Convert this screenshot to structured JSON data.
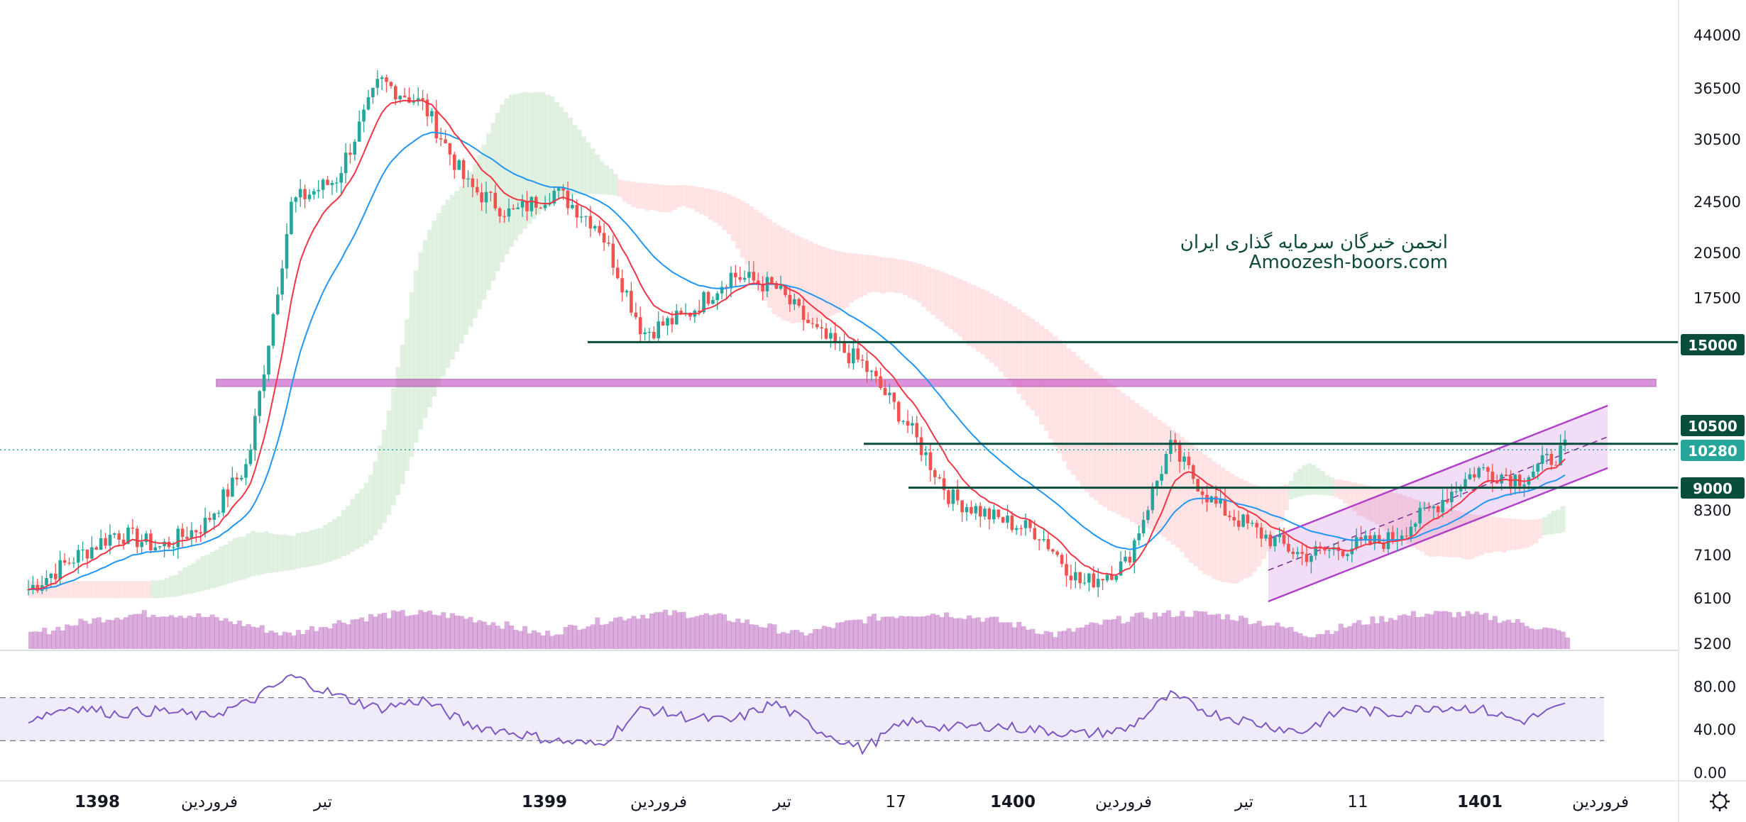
{
  "watermark": {
    "line1": "انجمن خبرگان سرمایه گذاری ایران",
    "line2": "Amoozesh-boors.com"
  },
  "colors": {
    "up": "#26a69a",
    "down": "#ef5350",
    "ema_fast": "#f23645",
    "ema_slow": "#2196f3",
    "level": "#0b4d3c",
    "zone": "#c039c0",
    "channel": "#b040c8",
    "volume": "#b04ab4",
    "rsi": "#7e57c2",
    "last_price": "#26a69a",
    "cloud_green": "#c8e6c9",
    "cloud_red": "#ffcdd2"
  },
  "price_axis": {
    "ticks": [
      "44000",
      "36500",
      "30500",
      "24500",
      "20500",
      "17500",
      "8300",
      "7100",
      "6100",
      "5200"
    ],
    "scale": "log",
    "range": [
      5200,
      44000
    ]
  },
  "rsi_axis": {
    "ticks": [
      "80.00",
      "40.00",
      "0.00"
    ],
    "upper_band": 70,
    "lower_band": 30
  },
  "time_axis": {
    "labels": [
      "1398",
      "فروردین",
      "تیر",
      "1399",
      "فروردین",
      "تیر",
      "17",
      "1400",
      "فروردین",
      "تیر",
      "11",
      "1401",
      "فروردین"
    ],
    "bold": [
      "1398",
      "1399",
      "1400",
      "1401"
    ]
  },
  "badges": {
    "level_15000": "15000",
    "level_10500": "10500",
    "last_price": "10280",
    "level_9000": "9000"
  },
  "settings_icon": "gear-icon",
  "chart_data": [
    {
      "type": "candlestick",
      "scale": "log",
      "ylim": [
        5200,
        44000
      ],
      "x": [
        "1398",
        "فروردین",
        "تیر",
        "1399",
        "فروردین",
        "تیر",
        "17",
        "1400",
        "فروردین",
        "تیر",
        "11",
        "1401",
        "فروردین"
      ],
      "close_path": [
        6300,
        7000,
        7700,
        7300,
        7900,
        9800,
        24500,
        26500,
        37500,
        34500,
        26000,
        23500,
        25500,
        22500,
        15500,
        16500,
        19000,
        18200,
        15400,
        13900,
        11300,
        8700,
        8100,
        7700,
        6400,
        6900,
        10400,
        8500,
        7700,
        7100,
        7300,
        7500,
        8400,
        9600,
        9300,
        10300
      ],
      "horizontal_levels": [
        15000,
        10500,
        9000
      ],
      "resistance_zone": 13000,
      "last_price": 10280,
      "indicators": [
        "EMA fast",
        "EMA slow",
        "Ichimoku cloud",
        "Volume profile"
      ],
      "ascending_channel": true
    },
    {
      "type": "line",
      "name": "RSI",
      "ylim": [
        0,
        100
      ],
      "bands": [
        30,
        70
      ],
      "values": [
        50,
        62,
        55,
        58,
        52,
        65,
        90,
        72,
        60,
        68,
        45,
        38,
        30,
        26,
        60,
        52,
        48,
        65,
        40,
        22,
        48,
        42,
        44,
        40,
        36,
        40,
        72,
        55,
        46,
        38,
        60,
        55,
        62,
        60,
        48,
        62
      ]
    }
  ]
}
